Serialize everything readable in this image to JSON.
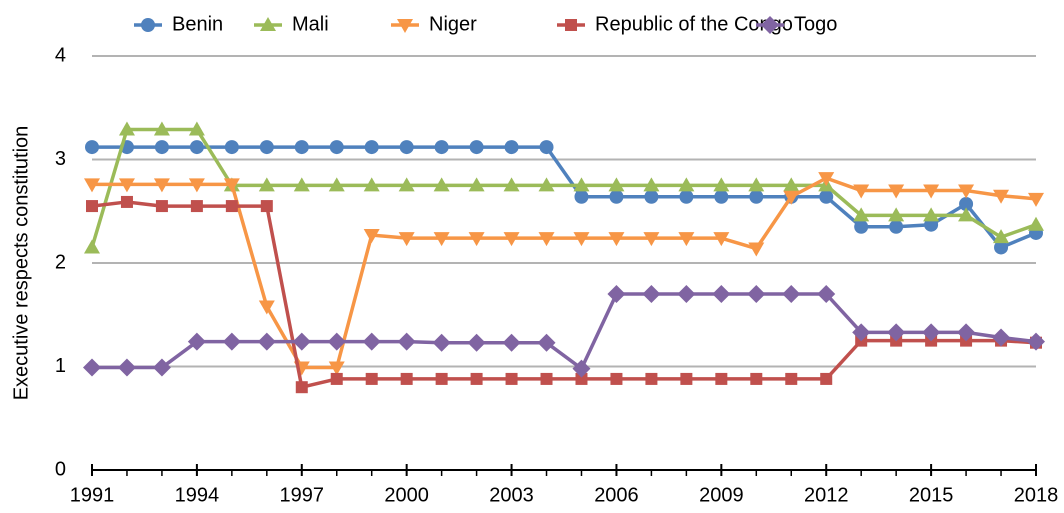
{
  "chart_data": {
    "type": "line",
    "y_label": "Executive respects constitution",
    "x": [
      1991,
      1992,
      1993,
      1994,
      1995,
      1996,
      1997,
      1998,
      1999,
      2000,
      2001,
      2002,
      2003,
      2004,
      2005,
      2006,
      2007,
      2008,
      2009,
      2010,
      2011,
      2012,
      2013,
      2014,
      2015,
      2016,
      2017,
      2018
    ],
    "xlim": [
      1991,
      2018
    ],
    "xticks": [
      1991,
      1994,
      1997,
      2000,
      2003,
      2006,
      2009,
      2012,
      2015,
      2018
    ],
    "ylim": [
      0,
      4
    ],
    "yticks": [
      0,
      1,
      2,
      3,
      4
    ],
    "grid": true,
    "legend": "top",
    "series": [
      {
        "name": "Benin",
        "color": "#4f81bd",
        "marker": "circle",
        "values": [
          3.12,
          3.12,
          3.12,
          3.12,
          3.12,
          3.12,
          3.12,
          3.12,
          3.12,
          3.12,
          3.12,
          3.12,
          3.12,
          3.12,
          2.64,
          2.64,
          2.64,
          2.64,
          2.64,
          2.64,
          2.64,
          2.64,
          2.35,
          2.35,
          2.37,
          2.57,
          2.15,
          2.29
        ]
      },
      {
        "name": "Mali",
        "color": "#9bbb59",
        "marker": "triangle-up",
        "values": [
          2.15,
          3.29,
          3.29,
          3.29,
          2.75,
          2.75,
          2.75,
          2.75,
          2.75,
          2.75,
          2.75,
          2.75,
          2.75,
          2.75,
          2.75,
          2.75,
          2.75,
          2.75,
          2.75,
          2.75,
          2.75,
          2.75,
          2.46,
          2.46,
          2.46,
          2.46,
          2.25,
          2.37
        ]
      },
      {
        "name": "Niger",
        "color": "#f79646",
        "marker": "triangle-down",
        "values": [
          2.76,
          2.76,
          2.76,
          2.76,
          2.76,
          1.58,
          0.99,
          0.99,
          2.27,
          2.24,
          2.24,
          2.24,
          2.24,
          2.24,
          2.24,
          2.24,
          2.24,
          2.24,
          2.24,
          2.14,
          2.64,
          2.82,
          2.7,
          2.7,
          2.7,
          2.7,
          2.65,
          2.62
        ]
      },
      {
        "name": "Republic of the Congo",
        "color": "#c0504d",
        "marker": "square",
        "values": [
          2.55,
          2.59,
          2.55,
          2.55,
          2.55,
          2.55,
          0.8,
          0.88,
          0.88,
          0.88,
          0.88,
          0.88,
          0.88,
          0.88,
          0.88,
          0.88,
          0.88,
          0.88,
          0.88,
          0.88,
          0.88,
          0.88,
          1.25,
          1.25,
          1.25,
          1.25,
          1.25,
          1.23
        ]
      },
      {
        "name": "Togo",
        "color": "#8064a2",
        "marker": "diamond",
        "values": [
          0.99,
          0.99,
          0.99,
          1.24,
          1.24,
          1.24,
          1.24,
          1.24,
          1.24,
          1.24,
          1.23,
          1.23,
          1.23,
          1.23,
          0.98,
          1.7,
          1.7,
          1.7,
          1.7,
          1.7,
          1.7,
          1.7,
          1.33,
          1.33,
          1.33,
          1.33,
          1.28,
          1.24
        ]
      }
    ]
  }
}
